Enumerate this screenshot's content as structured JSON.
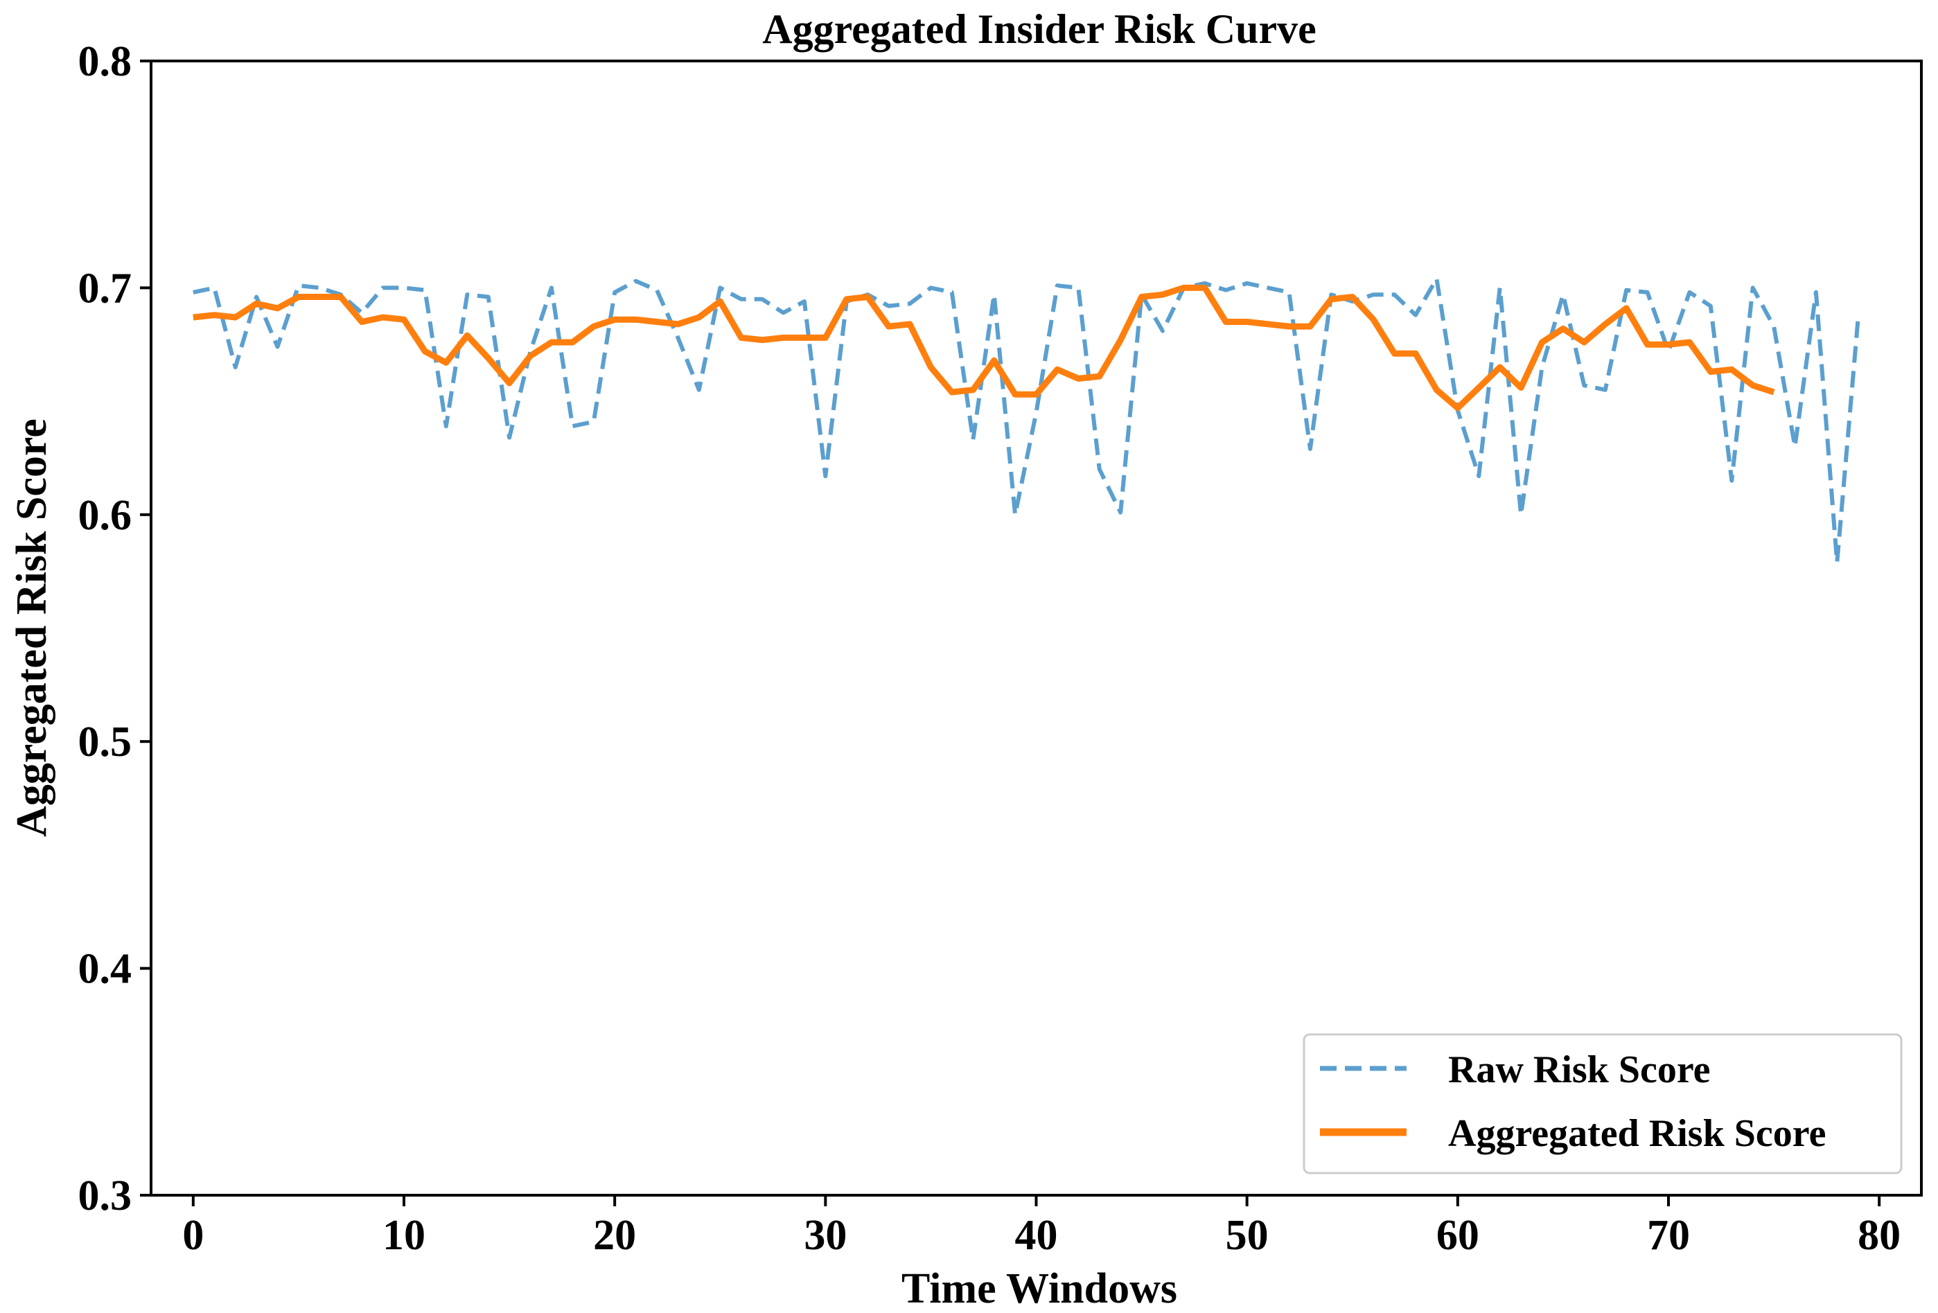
{
  "chart_data": {
    "type": "line",
    "title": "Aggregated Insider Risk Curve",
    "xlabel": "Time Windows",
    "ylabel": "Aggregated Risk Score",
    "xlim": [
      -2,
      82
    ],
    "ylim": [
      0.3,
      0.8
    ],
    "xticks": [
      "0",
      "10",
      "20",
      "30",
      "40",
      "50",
      "60",
      "70",
      "80"
    ],
    "yticks": [
      "0.3",
      "0.4",
      "0.5",
      "0.6",
      "0.7",
      "0.8"
    ],
    "grid": false,
    "legend_position": "lower-right",
    "series": [
      {
        "name": "Raw Risk Score",
        "style": "dashed",
        "color": "#5b9fcf",
        "x": [
          0,
          1,
          2,
          3,
          4,
          5,
          6,
          7,
          8,
          9,
          10,
          11,
          12,
          13,
          14,
          15,
          16,
          17,
          18,
          19,
          20,
          21,
          22,
          23,
          24,
          25,
          26,
          27,
          28,
          29,
          30,
          31,
          32,
          33,
          34,
          35,
          36,
          37,
          38,
          39,
          40,
          41,
          42,
          43,
          44,
          45,
          46,
          47,
          48,
          49,
          50,
          51,
          52,
          53,
          54,
          55,
          56,
          57,
          58,
          59,
          60,
          61,
          62,
          63,
          64,
          65,
          66,
          67,
          68,
          69,
          70,
          71,
          72,
          73,
          74,
          75,
          76,
          77,
          78,
          79
        ],
        "values": [
          0.698,
          0.7,
          0.665,
          0.696,
          0.674,
          0.701,
          0.7,
          0.697,
          0.689,
          0.7,
          0.7,
          0.699,
          0.639,
          0.697,
          0.696,
          0.634,
          0.672,
          0.7,
          0.639,
          0.641,
          0.698,
          0.703,
          0.699,
          0.678,
          0.655,
          0.7,
          0.695,
          0.695,
          0.689,
          0.694,
          0.617,
          0.694,
          0.697,
          0.692,
          0.693,
          0.7,
          0.698,
          0.633,
          0.697,
          0.6,
          0.645,
          0.701,
          0.7,
          0.62,
          0.601,
          0.697,
          0.681,
          0.7,
          0.702,
          0.699,
          0.702,
          0.7,
          0.698,
          0.629,
          0.697,
          0.694,
          0.697,
          0.697,
          0.688,
          0.704,
          0.646,
          0.617,
          0.7,
          0.6,
          0.665,
          0.697,
          0.657,
          0.655,
          0.699,
          0.698,
          0.672,
          0.698,
          0.692,
          0.615,
          0.7,
          0.683,
          0.63,
          0.698,
          0.579,
          0.687
        ]
      },
      {
        "name": "Aggregated Risk Score",
        "style": "solid",
        "color": "#ff7f0e",
        "x": [
          0,
          1,
          2,
          3,
          4,
          5,
          6,
          7,
          8,
          9,
          10,
          11,
          12,
          13,
          14,
          15,
          16,
          17,
          18,
          19,
          20,
          21,
          22,
          23,
          24,
          25,
          26,
          27,
          28,
          29,
          30,
          31,
          32,
          33,
          34,
          35,
          36,
          37,
          38,
          39,
          40,
          41,
          42,
          43,
          44,
          45,
          46,
          47,
          48,
          49,
          50,
          51,
          52,
          53,
          54,
          55,
          56,
          57,
          58,
          59,
          60,
          61,
          62,
          63,
          64,
          65,
          66,
          67,
          68,
          69,
          70,
          71,
          72,
          73,
          74,
          75
        ],
        "values": [
          0.687,
          0.688,
          0.687,
          0.693,
          0.691,
          0.696,
          0.696,
          0.696,
          0.685,
          0.687,
          0.686,
          0.672,
          0.667,
          0.679,
          0.669,
          0.658,
          0.67,
          0.676,
          0.676,
          0.683,
          0.686,
          0.686,
          0.685,
          0.684,
          0.687,
          0.694,
          0.678,
          0.677,
          0.678,
          0.678,
          0.678,
          0.695,
          0.696,
          0.683,
          0.684,
          0.665,
          0.654,
          0.655,
          0.668,
          0.653,
          0.653,
          0.664,
          0.66,
          0.661,
          0.677,
          0.696,
          0.697,
          0.7,
          0.7,
          0.685,
          0.685,
          0.684,
          0.683,
          0.683,
          0.695,
          0.696,
          0.686,
          0.671,
          0.671,
          0.655,
          0.647,
          0.656,
          0.665,
          0.656,
          0.676,
          0.682,
          0.676,
          0.684,
          0.691,
          0.675,
          0.675,
          0.676,
          0.663,
          0.664,
          0.657,
          0.654
        ]
      }
    ]
  }
}
